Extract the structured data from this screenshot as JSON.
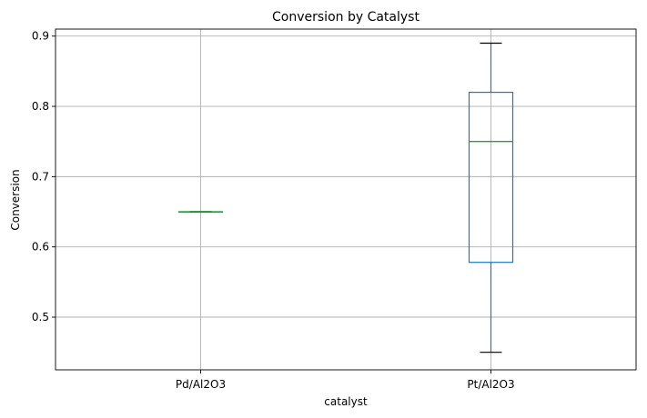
{
  "chart_data": {
    "type": "box",
    "title": "Conversion by Catalyst",
    "xlabel": "catalyst",
    "ylabel": "Conversion",
    "ylim": [
      0.425,
      0.91
    ],
    "yticks": [
      "0.5",
      "0.6",
      "0.7",
      "0.8",
      "0.9"
    ],
    "grid": true,
    "categories": [
      "Pd/Al2O3",
      "Pt/Al2O3"
    ],
    "boxes": [
      {
        "category": "Pd/Al2O3",
        "min": 0.65,
        "q1": 0.65,
        "median": 0.65,
        "q3": 0.65,
        "max": 0.65
      },
      {
        "category": "Pt/Al2O3",
        "min": 0.45,
        "q1": 0.578,
        "median": 0.75,
        "q3": 0.82,
        "max": 0.89
      }
    ],
    "colors": {
      "box": "#1f77b4",
      "median": "#2ca02c",
      "whisker_cap": "#000000"
    }
  }
}
